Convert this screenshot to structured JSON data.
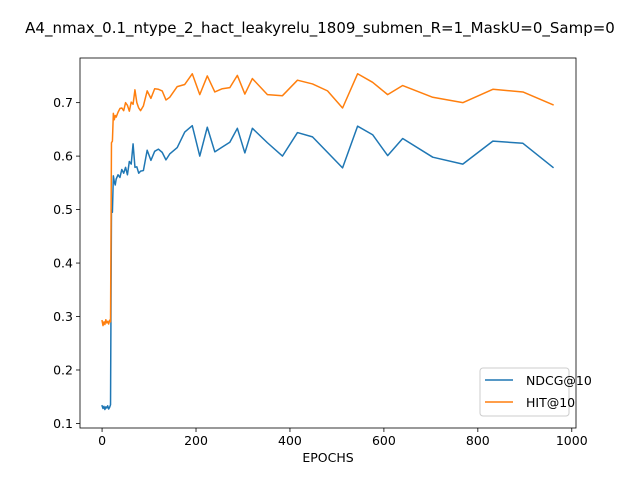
{
  "chart_data": {
    "type": "line",
    "title": "A4_nmax_0.1_ntype_2_hact_leakyrelu_1809_submen_R=1_MaskU=0_Samp=0",
    "xlabel": "EPOCHS",
    "ylabel": "",
    "xlim": [
      -47,
      1009
    ],
    "ylim": [
      0.0915,
      0.7835
    ],
    "xticks": [
      0,
      200,
      400,
      600,
      800,
      1000
    ],
    "yticks": [
      0.1,
      0.2,
      0.3,
      0.4,
      0.5,
      0.6,
      0.7
    ],
    "xtick_labels": [
      "0",
      "200",
      "400",
      "600",
      "800",
      "1000"
    ],
    "ytick_labels": [
      "0.1",
      "0.2",
      "0.3",
      "0.4",
      "0.5",
      "0.6",
      "0.7"
    ],
    "grid": false,
    "legend_position": "lower-right",
    "series": [
      {
        "name": "NDCG@10",
        "color": "#1f77b4",
        "x": [
          0,
          2,
          4,
          6,
          8,
          10,
          12,
          14,
          16,
          18,
          20,
          22,
          24,
          26,
          28,
          30,
          34,
          38,
          42,
          46,
          50,
          54,
          58,
          62,
          66,
          70,
          74,
          78,
          82,
          88,
          96,
          104,
          112,
          120,
          128,
          136,
          144,
          160,
          176,
          192,
          208,
          224,
          240,
          256,
          272,
          288,
          304,
          320,
          352,
          384,
          416,
          448,
          480,
          512,
          544,
          576,
          608,
          640,
          704,
          768,
          832,
          896,
          960
        ],
        "y": [
          0.133,
          0.128,
          0.132,
          0.126,
          0.131,
          0.129,
          0.133,
          0.127,
          0.13,
          0.135,
          0.499,
          0.495,
          0.563,
          0.552,
          0.546,
          0.557,
          0.565,
          0.56,
          0.575,
          0.568,
          0.579,
          0.565,
          0.59,
          0.585,
          0.623,
          0.579,
          0.58,
          0.568,
          0.572,
          0.573,
          0.611,
          0.592,
          0.609,
          0.613,
          0.607,
          0.593,
          0.604,
          0.616,
          0.645,
          0.657,
          0.6,
          0.654,
          0.608,
          0.617,
          0.626,
          0.652,
          0.606,
          0.652,
          0.625,
          0.6,
          0.644,
          0.636,
          0.607,
          0.578,
          0.656,
          0.64,
          0.601,
          0.633,
          0.598,
          0.585,
          0.628,
          0.624,
          0.579
        ]
      },
      {
        "name": "HIT@10",
        "color": "#ff7f0e",
        "x": [
          0,
          2,
          4,
          6,
          8,
          10,
          12,
          14,
          16,
          18,
          20,
          22,
          24,
          26,
          28,
          30,
          34,
          38,
          42,
          46,
          50,
          54,
          58,
          62,
          66,
          70,
          74,
          78,
          82,
          88,
          96,
          104,
          112,
          120,
          128,
          136,
          144,
          160,
          176,
          192,
          208,
          224,
          240,
          256,
          272,
          288,
          304,
          320,
          352,
          384,
          416,
          448,
          480,
          512,
          544,
          576,
          608,
          640,
          704,
          768,
          832,
          896,
          960
        ],
        "y": [
          0.292,
          0.283,
          0.29,
          0.285,
          0.294,
          0.288,
          0.291,
          0.286,
          0.293,
          0.29,
          0.625,
          0.628,
          0.68,
          0.668,
          0.676,
          0.673,
          0.682,
          0.689,
          0.69,
          0.685,
          0.7,
          0.695,
          0.684,
          0.701,
          0.697,
          0.724,
          0.7,
          0.69,
          0.685,
          0.694,
          0.722,
          0.708,
          0.726,
          0.725,
          0.722,
          0.705,
          0.71,
          0.73,
          0.734,
          0.754,
          0.715,
          0.75,
          0.72,
          0.726,
          0.728,
          0.751,
          0.716,
          0.745,
          0.715,
          0.713,
          0.742,
          0.735,
          0.722,
          0.69,
          0.754,
          0.738,
          0.715,
          0.732,
          0.71,
          0.7,
          0.725,
          0.72,
          0.696
        ]
      }
    ]
  }
}
